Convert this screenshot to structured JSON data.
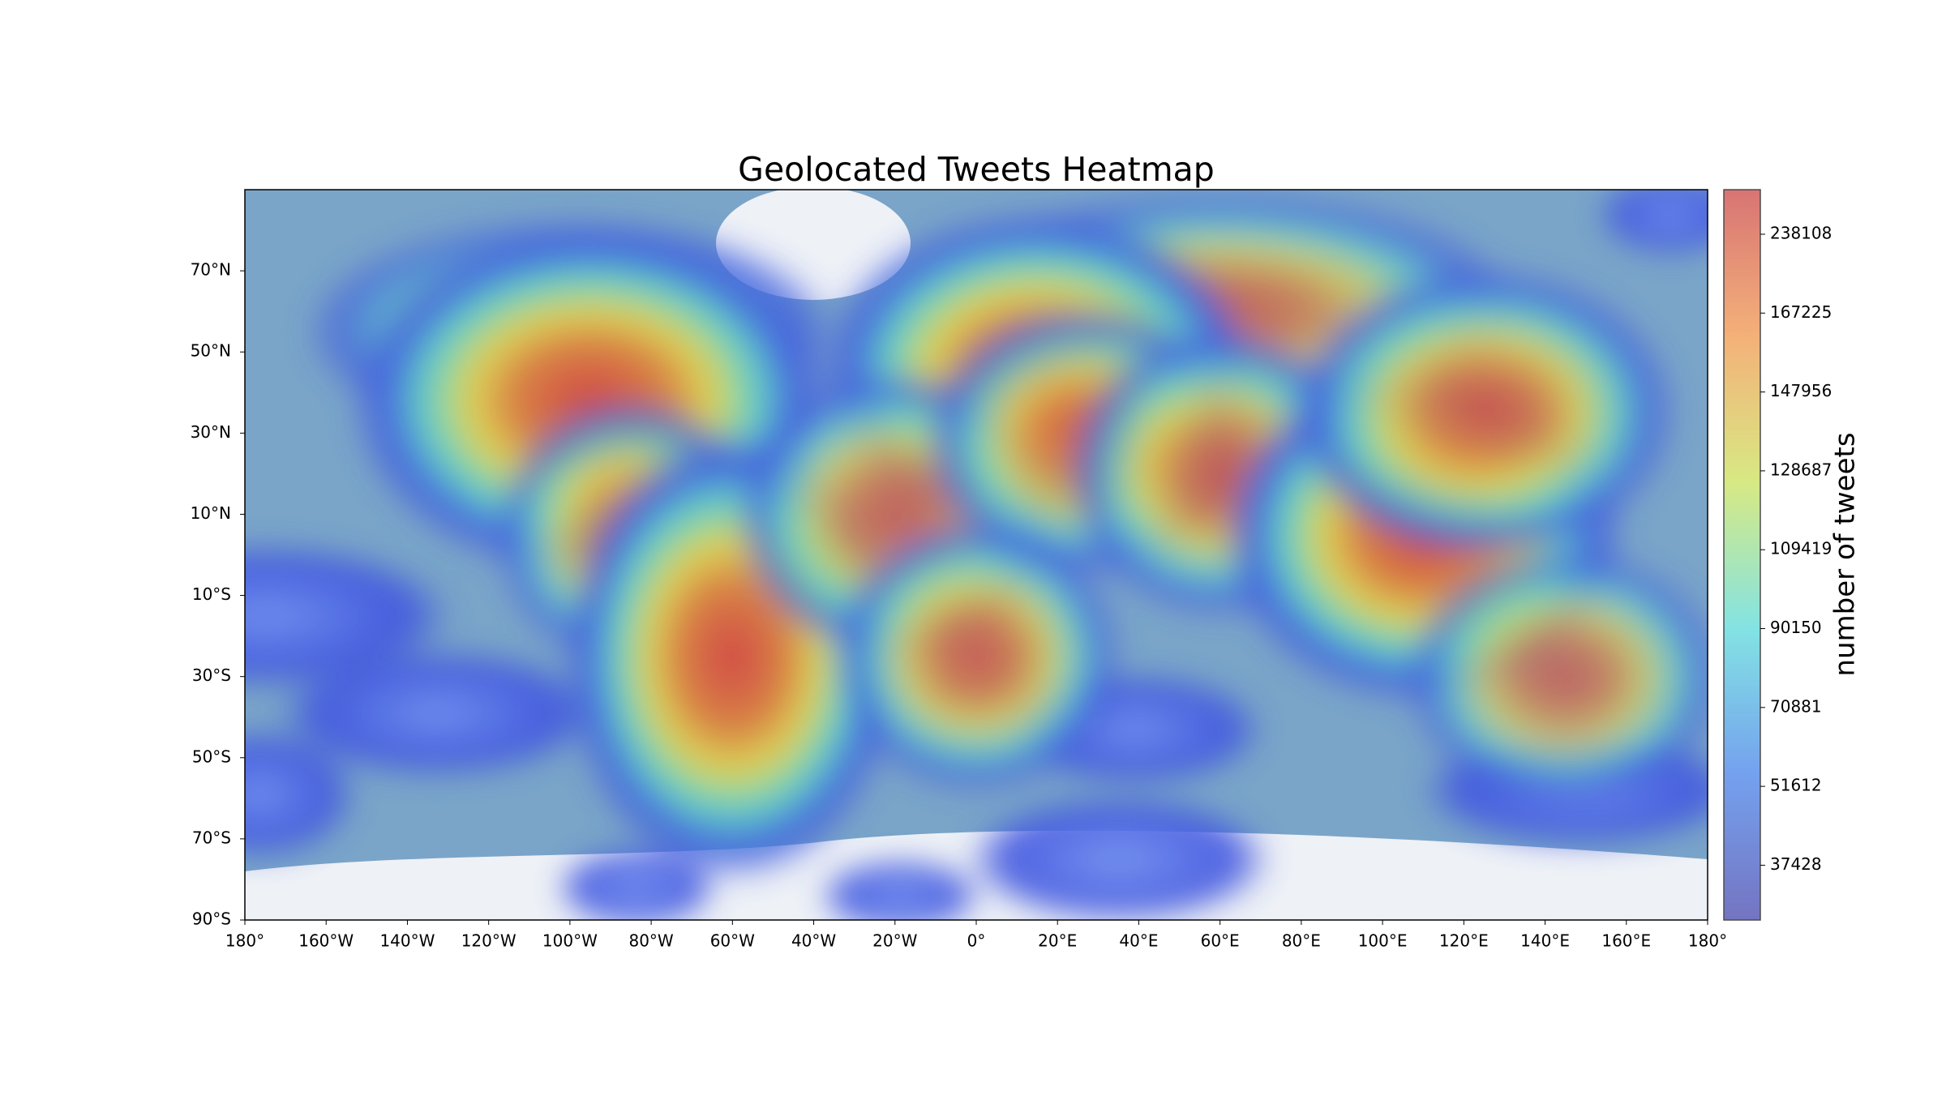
{
  "title": "Geolocated Tweets Heatmap",
  "map": {
    "xlim": [
      -180,
      180
    ],
    "ylim": [
      -90,
      90
    ],
    "xticks": [
      {
        "value": -180,
        "label": "180°"
      },
      {
        "value": -160,
        "label": "160°W"
      },
      {
        "value": -140,
        "label": "140°W"
      },
      {
        "value": -120,
        "label": "120°W"
      },
      {
        "value": -100,
        "label": "100°W"
      },
      {
        "value": -80,
        "label": "80°W"
      },
      {
        "value": -60,
        "label": "60°W"
      },
      {
        "value": -40,
        "label": "40°W"
      },
      {
        "value": -20,
        "label": "20°W"
      },
      {
        "value": 0,
        "label": "0°"
      },
      {
        "value": 20,
        "label": "20°E"
      },
      {
        "value": 40,
        "label": "40°E"
      },
      {
        "value": 60,
        "label": "60°E"
      },
      {
        "value": 80,
        "label": "80°E"
      },
      {
        "value": 100,
        "label": "100°E"
      },
      {
        "value": 120,
        "label": "120°E"
      },
      {
        "value": 140,
        "label": "140°E"
      },
      {
        "value": 160,
        "label": "160°E"
      },
      {
        "value": 180,
        "label": "180°"
      }
    ],
    "yticks": [
      {
        "value": 70,
        "label": "70°N"
      },
      {
        "value": 50,
        "label": "50°N"
      },
      {
        "value": 30,
        "label": "30°N"
      },
      {
        "value": 10,
        "label": "10°N"
      },
      {
        "value": -10,
        "label": "10°S"
      },
      {
        "value": -30,
        "label": "30°S"
      },
      {
        "value": -50,
        "label": "50°S"
      },
      {
        "value": -70,
        "label": "70°S"
      },
      {
        "value": -90,
        "label": "90°S"
      }
    ]
  },
  "colorbar": {
    "label": "number of tweets",
    "ticks": [
      37428,
      51612,
      70881,
      90150,
      109419,
      128687,
      147956,
      167225,
      238108
    ]
  }
}
